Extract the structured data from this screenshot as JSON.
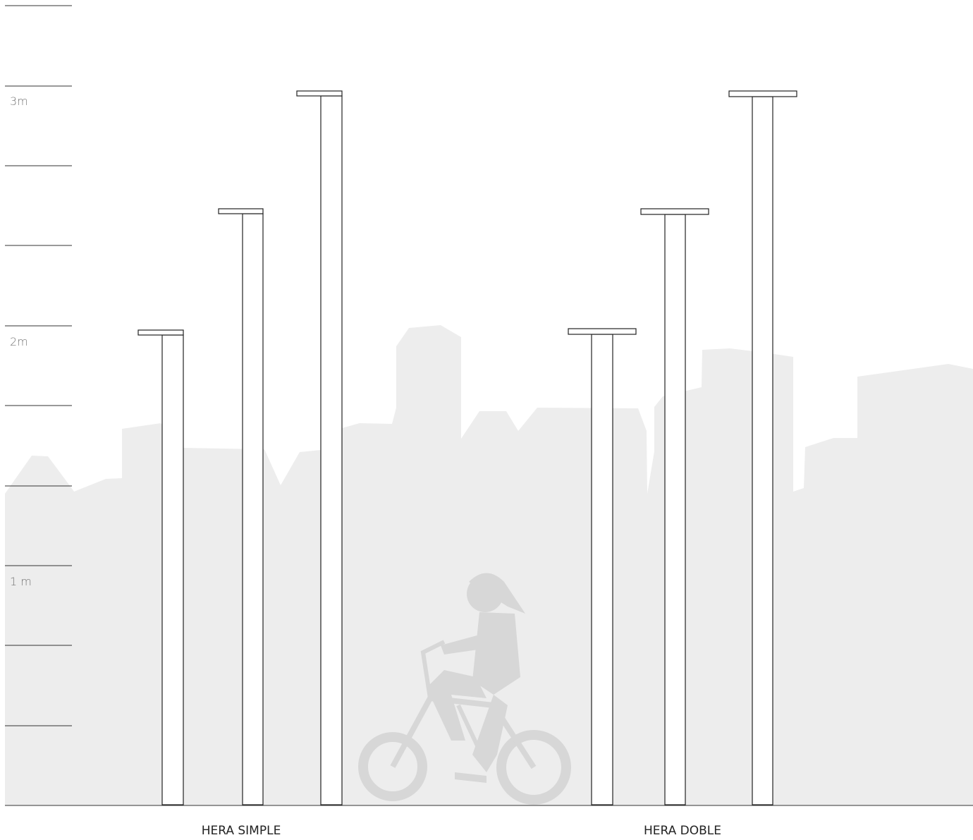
{
  "scale": {
    "labels": [
      "3m",
      "2m",
      "1 m"
    ]
  },
  "groups": [
    {
      "label": "HERA SIMPLE"
    },
    {
      "label": "HERA DOBLE"
    }
  ]
}
